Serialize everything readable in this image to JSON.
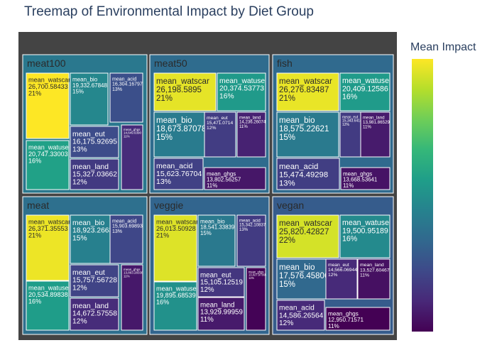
{
  "chart_data": {
    "type": "treemap",
    "title": "Treemap of Environmental Impact by Diet Group",
    "colorbar_title": "Mean Impact",
    "colorscale": [
      "#440154",
      "#482878",
      "#3e4989",
      "#31688e",
      "#26828e",
      "#1f9e89",
      "#35b779",
      "#6ece58",
      "#b5de2b",
      "#fde725"
    ],
    "groups": [
      {
        "name": "meat100",
        "items": [
          {
            "label": "mean_watscar",
            "value": "26,700.58433",
            "pct": "21%"
          },
          {
            "label": "mean_watuse",
            "value": "20,747.33003",
            "pct": "16%"
          },
          {
            "label": "mean_bio",
            "value": "19,332.67848",
            "pct": "15%"
          },
          {
            "label": "mean_acid",
            "value": "16,304.16797",
            "pct": "13%"
          },
          {
            "label": "mean_eut",
            "value": "16,175.92695",
            "pct": "13%"
          },
          {
            "label": "mean_land",
            "value": "15,327.03662",
            "pct": "12%"
          },
          {
            "label": "mean_ghgs",
            "value": "14,649.6390",
            "pct": "11%"
          }
        ]
      },
      {
        "name": "meat50",
        "items": [
          {
            "label": "mean_watscar",
            "value": "26,198.5895",
            "pct": "21%"
          },
          {
            "label": "mean_watuse",
            "value": "20,374.53773",
            "pct": "16%"
          },
          {
            "label": "mean_bio",
            "value": "18,673.87078",
            "pct": "15%"
          },
          {
            "label": "mean_eut",
            "value": "15,471.0714",
            "pct": "12%"
          },
          {
            "label": "mean_land",
            "value": "14,236.26074",
            "pct": "11%"
          },
          {
            "label": "mean_acid",
            "value": "15,623.76704",
            "pct": "13%"
          },
          {
            "label": "mean_ghgs",
            "value": "13,802.56257",
            "pct": "11%"
          }
        ]
      },
      {
        "name": "fish",
        "items": [
          {
            "label": "mean_watscar",
            "value": "26,276.83487",
            "pct": "21%"
          },
          {
            "label": "mean_watuse",
            "value": "20,409.12586",
            "pct": "16%"
          },
          {
            "label": "mean_bio",
            "value": "18,575.22621",
            "pct": "15%"
          },
          {
            "label": "mean_eut",
            "value": "15,343.64145",
            "pct": "12%"
          },
          {
            "label": "mean_land",
            "value": "13,981.86529",
            "pct": "11%"
          },
          {
            "label": "mean_acid",
            "value": "15,474.49298",
            "pct": "13%"
          },
          {
            "label": "mean_ghgs",
            "value": "13,668.53641",
            "pct": "11%"
          }
        ]
      },
      {
        "name": "meat",
        "items": [
          {
            "label": "mean_watscar",
            "value": "26,371.35553",
            "pct": "21%"
          },
          {
            "label": "mean_watuse",
            "value": "20,534.89838",
            "pct": "16%"
          },
          {
            "label": "mean_bio",
            "value": "18,923.26633",
            "pct": "15%"
          },
          {
            "label": "mean_acid",
            "value": "15,903.69893",
            "pct": "13%"
          },
          {
            "label": "mean_eut",
            "value": "15,757.56728",
            "pct": "12%"
          },
          {
            "label": "mean_land",
            "value": "14,672.57558",
            "pct": "12%"
          },
          {
            "label": "mean_ghgs",
            "value": "13,863.28338",
            "pct": "11%"
          }
        ]
      },
      {
        "name": "veggie",
        "items": [
          {
            "label": "mean_watscar",
            "value": "26,013.50928",
            "pct": "21%"
          },
          {
            "label": "mean_watuse",
            "value": "19,895.68539",
            "pct": "16%"
          },
          {
            "label": "mean_bio",
            "value": "18,541.33839",
            "pct": "15%"
          },
          {
            "label": "mean_acid",
            "value": "15,342.10837",
            "pct": "13%"
          },
          {
            "label": "mean_eut",
            "value": "15,105.12519",
            "pct": "12%"
          },
          {
            "label": "mean_land",
            "value": "13,929.99959",
            "pct": "11%"
          },
          {
            "label": "mean_ghgs",
            "value": "13,027.97365",
            "pct": "11%"
          }
        ]
      },
      {
        "name": "vegan",
        "items": [
          {
            "label": "mean_watscar",
            "value": "25,820.42827",
            "pct": "22%"
          },
          {
            "label": "mean_watuse",
            "value": "19,500.95189",
            "pct": "16%"
          },
          {
            "label": "mean_bio",
            "value": "17,576.45806",
            "pct": "15%"
          },
          {
            "label": "mean_eut",
            "value": "14,566.06944",
            "pct": "12%"
          },
          {
            "label": "mean_land",
            "value": "13,527.60467",
            "pct": "11%"
          },
          {
            "label": "mean_acid",
            "value": "14,586.26564",
            "pct": "12%"
          },
          {
            "label": "mean_ghgs",
            "value": "12,950.71571",
            "pct": "11%"
          }
        ]
      }
    ]
  }
}
